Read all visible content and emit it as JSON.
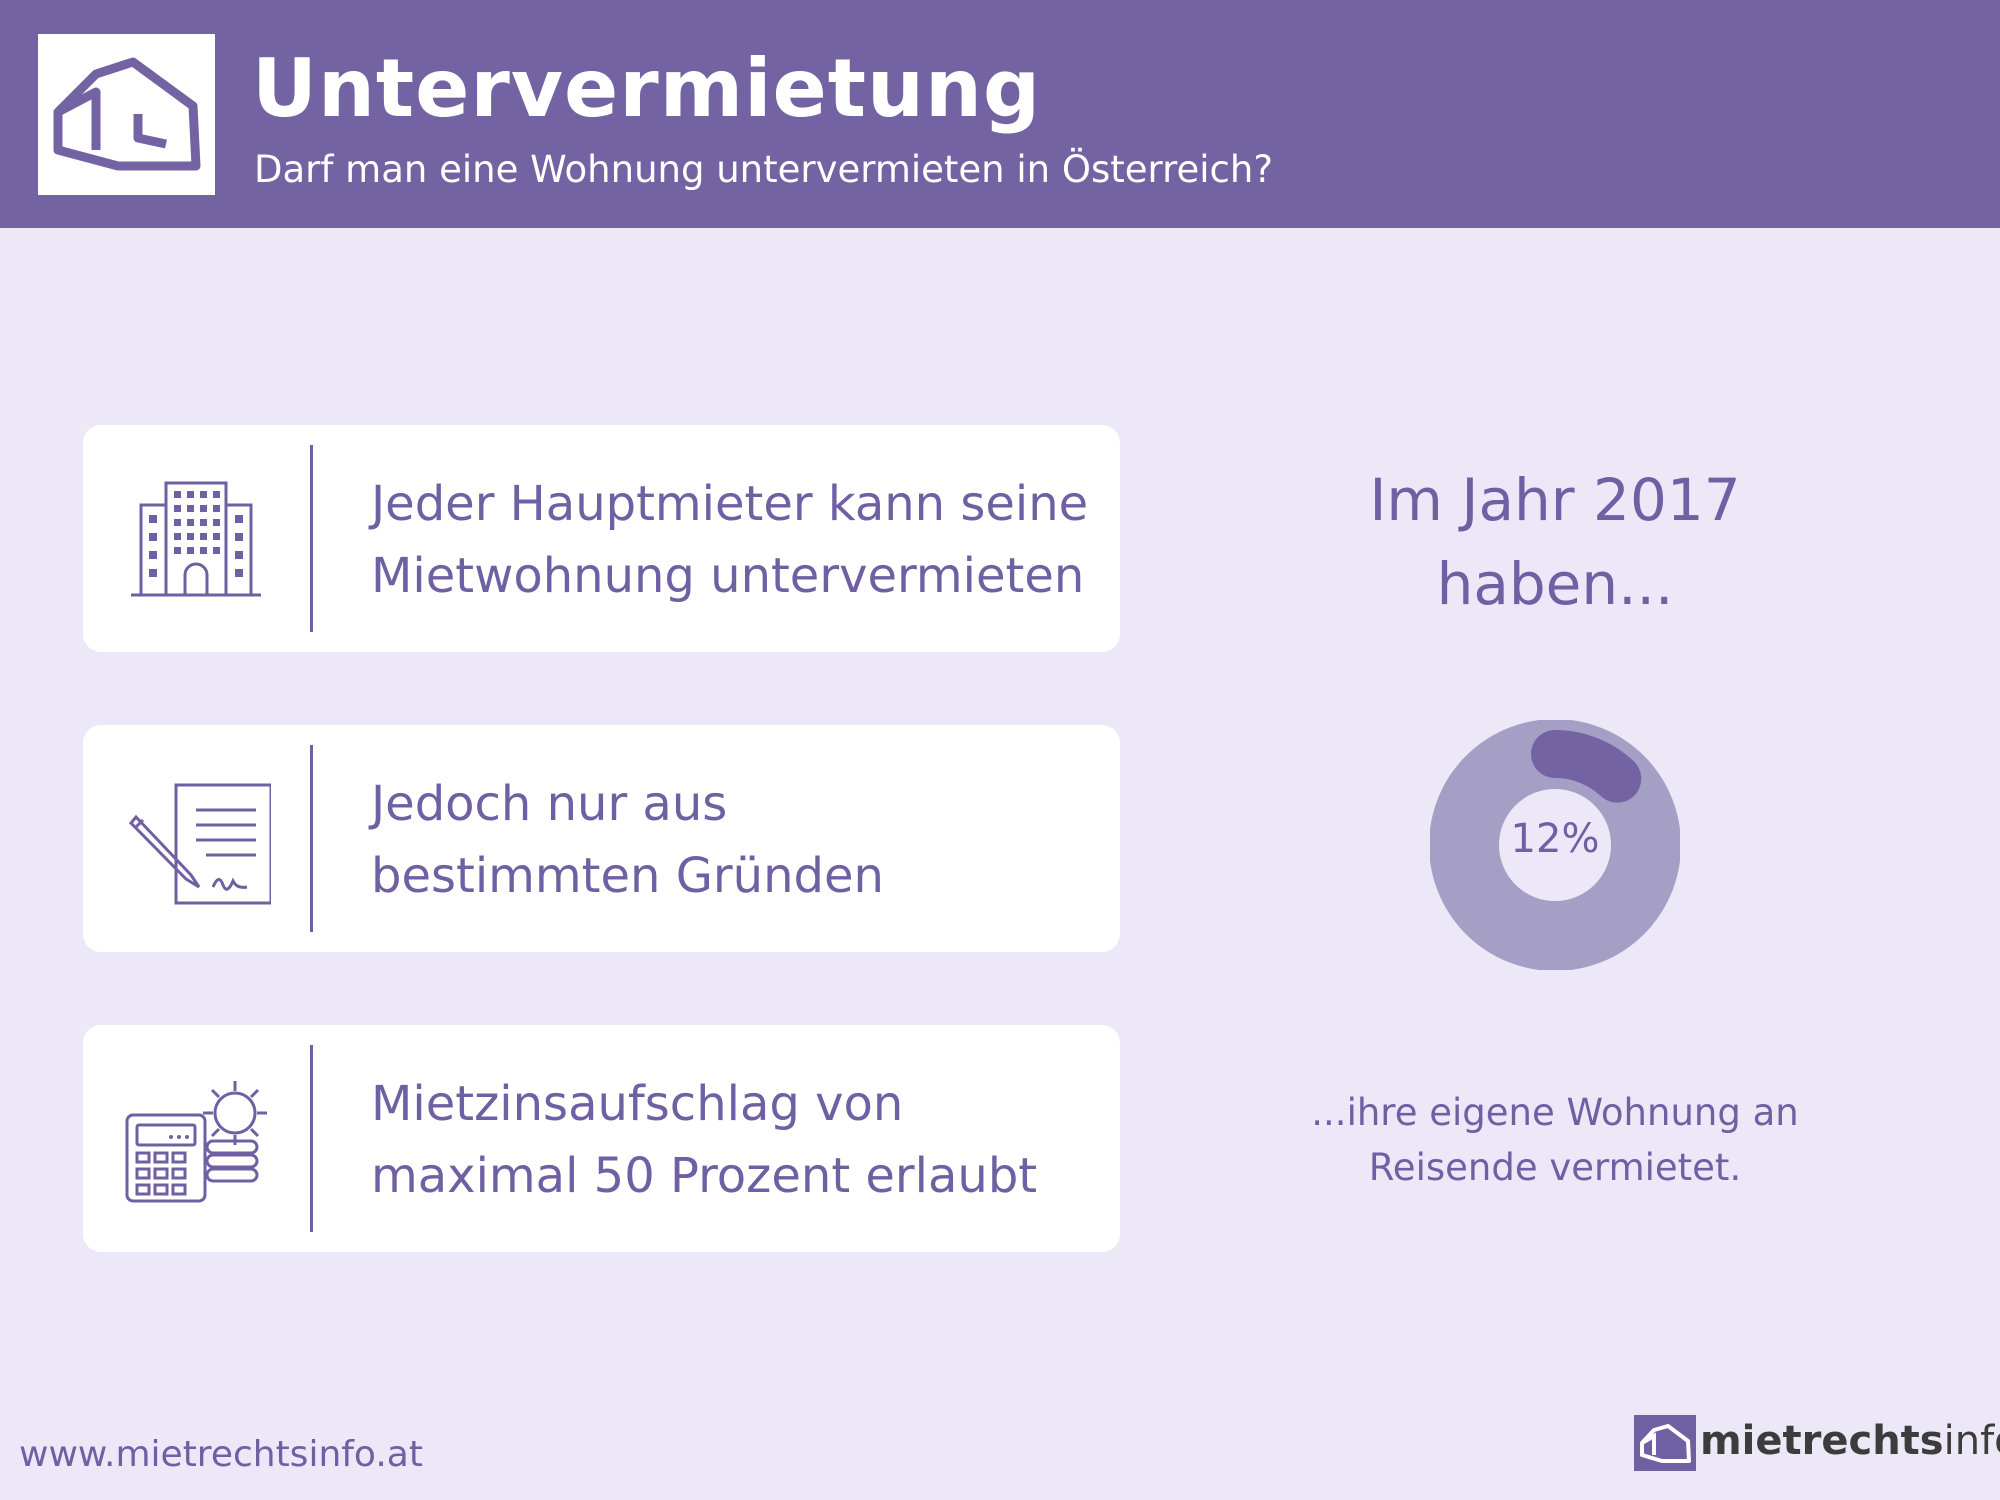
{
  "header": {
    "title": "Untervermietung",
    "subtitle": "Darf man eine Wohnung untervermieten in Österreich?"
  },
  "cards": [
    {
      "icon": "building-icon",
      "lines": [
        "Jeder Hauptmieter kann seine",
        "Mietwohnung untervermieten"
      ]
    },
    {
      "icon": "contract-pen-icon",
      "lines": [
        "Jedoch nur aus",
        "bestimmten Gründen"
      ]
    },
    {
      "icon": "calculator-gear-icon",
      "lines": [
        "Mietzinsaufschlag von",
        "maximal 50 Prozent erlaubt"
      ]
    }
  ],
  "chart_data": {
    "type": "pie",
    "intro": [
      "Im Jahr 2017",
      "haben..."
    ],
    "value": 12,
    "value_label": "12%",
    "outro": [
      "...ihre eigene Wohnung an",
      "Reisende vermietet."
    ],
    "colors": {
      "highlight": "#7363a3",
      "rest": "#a69fc5"
    }
  },
  "footer": {
    "url": "www.mietrechtsinfo.at",
    "brand_bold": "mietrechts",
    "brand_light": "info"
  },
  "colors": {
    "brand": "#7363a3",
    "background": "#ece8f7",
    "text": "#6f60a3"
  }
}
